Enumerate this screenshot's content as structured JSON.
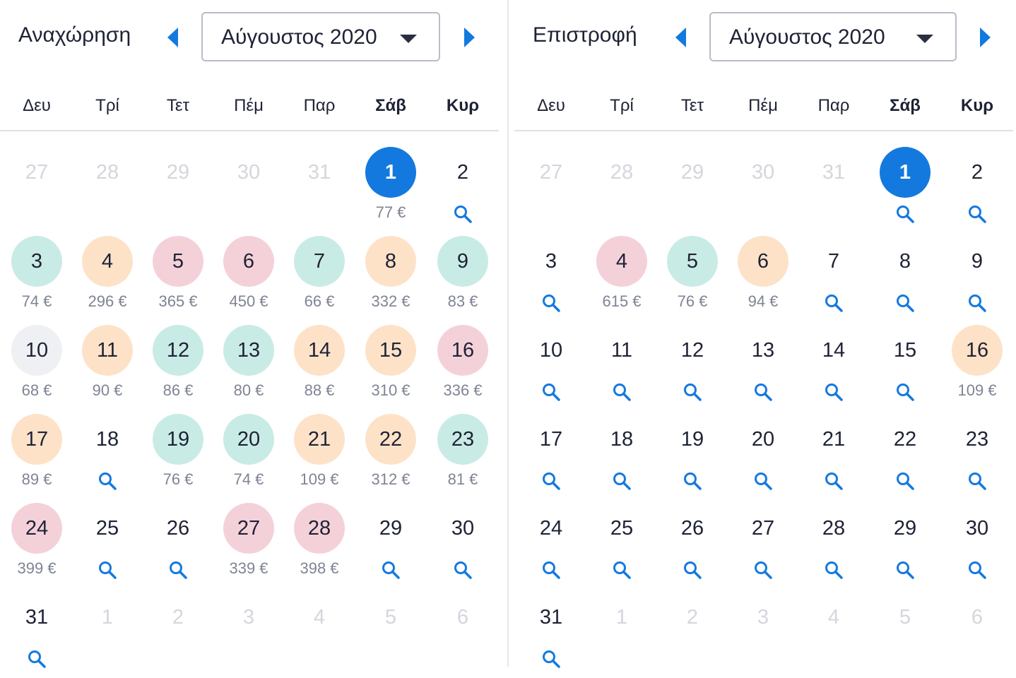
{
  "departure": {
    "title": "Αναχώρηση",
    "month": "Αύγουστος 2020",
    "prev_icon": "caret-left-icon",
    "next_icon": "caret-right-icon",
    "dropdown_icon": "caret-down-icon",
    "weekdays": [
      "Δευ",
      "Τρί",
      "Τετ",
      "Πέμ",
      "Παρ",
      "Σάβ",
      "Κυρ"
    ],
    "weeks": [
      [
        {
          "day": "27",
          "other": true
        },
        {
          "day": "28",
          "other": true
        },
        {
          "day": "29",
          "other": true
        },
        {
          "day": "30",
          "other": true
        },
        {
          "day": "31",
          "other": true
        },
        {
          "day": "1",
          "state": "sel",
          "price": "77 €"
        },
        {
          "day": "2",
          "search": true
        }
      ],
      [
        {
          "day": "3",
          "state": "green",
          "price": "74 €"
        },
        {
          "day": "4",
          "state": "orange",
          "price": "296 €"
        },
        {
          "day": "5",
          "state": "red",
          "price": "365 €"
        },
        {
          "day": "6",
          "state": "red",
          "price": "450 €"
        },
        {
          "day": "7",
          "state": "green",
          "price": "66 €"
        },
        {
          "day": "8",
          "state": "orange",
          "price": "332 €"
        },
        {
          "day": "9",
          "state": "green",
          "price": "83 €"
        }
      ],
      [
        {
          "day": "10",
          "state": "grey",
          "price": "68 €"
        },
        {
          "day": "11",
          "state": "orange",
          "price": "90 €"
        },
        {
          "day": "12",
          "state": "green",
          "price": "86 €"
        },
        {
          "day": "13",
          "state": "green",
          "price": "80 €"
        },
        {
          "day": "14",
          "state": "orange",
          "price": "88 €"
        },
        {
          "day": "15",
          "state": "orange",
          "price": "310 €"
        },
        {
          "day": "16",
          "state": "red",
          "price": "336 €"
        }
      ],
      [
        {
          "day": "17",
          "state": "orange",
          "price": "89 €"
        },
        {
          "day": "18",
          "search": true
        },
        {
          "day": "19",
          "state": "green",
          "price": "76 €"
        },
        {
          "day": "20",
          "state": "green",
          "price": "74 €"
        },
        {
          "day": "21",
          "state": "orange",
          "price": "109 €"
        },
        {
          "day": "22",
          "state": "orange",
          "price": "312 €"
        },
        {
          "day": "23",
          "state": "green",
          "price": "81 €"
        }
      ],
      [
        {
          "day": "24",
          "state": "red",
          "price": "399 €"
        },
        {
          "day": "25",
          "search": true
        },
        {
          "day": "26",
          "search": true
        },
        {
          "day": "27",
          "state": "red",
          "price": "339 €"
        },
        {
          "day": "28",
          "state": "red",
          "price": "398 €"
        },
        {
          "day": "29",
          "search": true
        },
        {
          "day": "30",
          "search": true
        }
      ],
      [
        {
          "day": "31",
          "search": true
        },
        {
          "day": "1",
          "other": true
        },
        {
          "day": "2",
          "other": true
        },
        {
          "day": "3",
          "other": true
        },
        {
          "day": "4",
          "other": true
        },
        {
          "day": "5",
          "other": true
        },
        {
          "day": "6",
          "other": true
        }
      ]
    ]
  },
  "return": {
    "title": "Επιστροφή",
    "month": "Αύγουστος 2020",
    "prev_icon": "caret-left-icon",
    "next_icon": "caret-right-icon",
    "dropdown_icon": "caret-down-icon",
    "weekdays": [
      "Δευ",
      "Τρί",
      "Τετ",
      "Πέμ",
      "Παρ",
      "Σάβ",
      "Κυρ"
    ],
    "weeks": [
      [
        {
          "day": "27",
          "other": true
        },
        {
          "day": "28",
          "other": true
        },
        {
          "day": "29",
          "other": true
        },
        {
          "day": "30",
          "other": true
        },
        {
          "day": "31",
          "other": true
        },
        {
          "day": "1",
          "state": "sel",
          "search": true
        },
        {
          "day": "2",
          "search": true
        }
      ],
      [
        {
          "day": "3",
          "search": true
        },
        {
          "day": "4",
          "state": "red",
          "price": "615 €"
        },
        {
          "day": "5",
          "state": "green",
          "price": "76 €"
        },
        {
          "day": "6",
          "state": "orange",
          "price": "94 €"
        },
        {
          "day": "7",
          "search": true
        },
        {
          "day": "8",
          "search": true
        },
        {
          "day": "9",
          "search": true
        }
      ],
      [
        {
          "day": "10",
          "search": true
        },
        {
          "day": "11",
          "search": true
        },
        {
          "day": "12",
          "search": true
        },
        {
          "day": "13",
          "search": true
        },
        {
          "day": "14",
          "search": true
        },
        {
          "day": "15",
          "search": true
        },
        {
          "day": "16",
          "state": "orange",
          "price": "109 €"
        }
      ],
      [
        {
          "day": "17",
          "search": true
        },
        {
          "day": "18",
          "search": true
        },
        {
          "day": "19",
          "search": true
        },
        {
          "day": "20",
          "search": true
        },
        {
          "day": "21",
          "search": true
        },
        {
          "day": "22",
          "search": true
        },
        {
          "day": "23",
          "search": true
        }
      ],
      [
        {
          "day": "24",
          "search": true
        },
        {
          "day": "25",
          "search": true
        },
        {
          "day": "26",
          "search": true
        },
        {
          "day": "27",
          "search": true
        },
        {
          "day": "28",
          "search": true
        },
        {
          "day": "29",
          "search": true
        },
        {
          "day": "30",
          "search": true
        }
      ],
      [
        {
          "day": "31",
          "search": true
        },
        {
          "day": "1",
          "other": true
        },
        {
          "day": "2",
          "other": true
        },
        {
          "day": "3",
          "other": true
        },
        {
          "day": "4",
          "other": true
        },
        {
          "day": "5",
          "other": true
        },
        {
          "day": "6",
          "other": true
        }
      ]
    ]
  },
  "colors": {
    "selected": "#1479de",
    "cheap": "#c9ebe6",
    "medium": "#fde2c8",
    "expensive": "#f4d1d9",
    "neutral": "#eef0f4",
    "icon": "#1479de"
  },
  "chart_data": {
    "type": "heatmap",
    "series": [
      {
        "name": "Αναχώρηση",
        "x": [
          "1",
          "3",
          "4",
          "5",
          "6",
          "7",
          "8",
          "9",
          "10",
          "11",
          "12",
          "13",
          "14",
          "15",
          "16",
          "17",
          "19",
          "20",
          "21",
          "22",
          "23",
          "24",
          "27",
          "28"
        ],
        "values": [
          77,
          74,
          296,
          365,
          450,
          66,
          332,
          83,
          68,
          90,
          86,
          80,
          88,
          310,
          336,
          89,
          76,
          74,
          109,
          312,
          81,
          399,
          339,
          398
        ]
      },
      {
        "name": "Επιστροφή",
        "x": [
          "4",
          "5",
          "6",
          "16"
        ],
        "values": [
          615,
          76,
          94,
          109
        ]
      }
    ]
  }
}
